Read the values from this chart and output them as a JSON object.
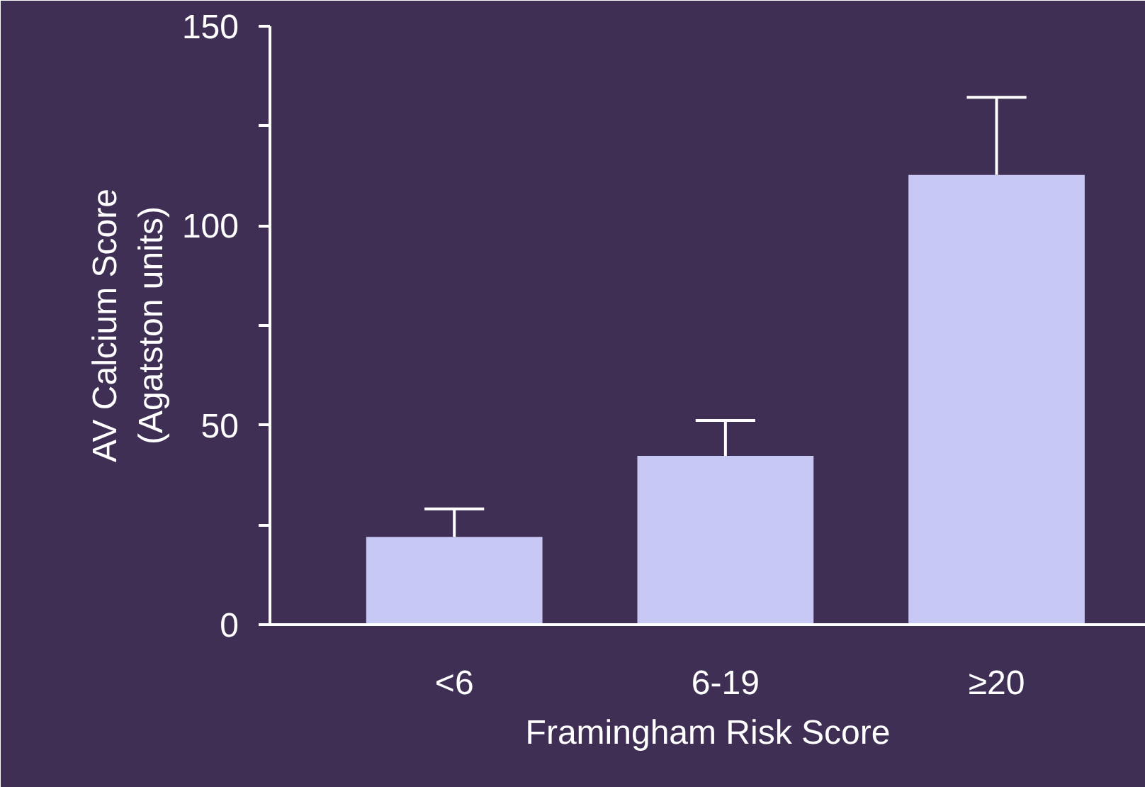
{
  "chart_data": {
    "type": "bar",
    "xlabel": "Framingham Risk Score",
    "ylabel": "AV Calcium Score\n(Agatston units)",
    "categories": [
      "<6",
      "6-19",
      "≥20"
    ],
    "values": [
      22,
      42.3,
      112.7
    ],
    "errors": [
      [
        22,
        29
      ],
      [
        42.3,
        51.2
      ],
      [
        112.7,
        132.2
      ]
    ],
    "color": "#c8c8f5",
    "ylim": [
      0,
      150
    ],
    "yticks": [
      0,
      {
        "value": 25,
        "label": null
      },
      50,
      {
        "value": 75,
        "label": null
      },
      100,
      {
        "value": 125,
        "label": null
      },
      150
    ],
    "grid": false
  }
}
